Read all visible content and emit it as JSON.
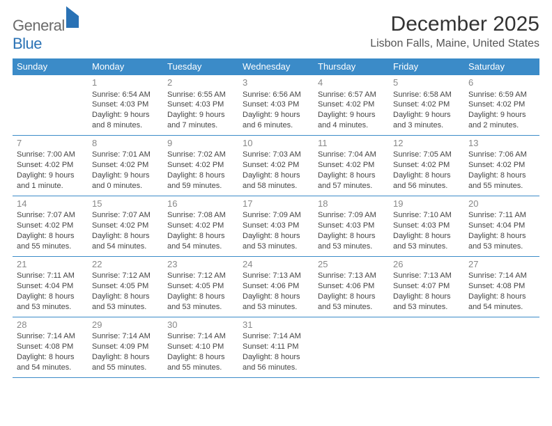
{
  "logo": {
    "general": "General",
    "blue": "Blue"
  },
  "title": "December 2025",
  "location": "Lisbon Falls, Maine, United States",
  "header_bg": "#3b8bc8",
  "weekdays": [
    "Sunday",
    "Monday",
    "Tuesday",
    "Wednesday",
    "Thursday",
    "Friday",
    "Saturday"
  ],
  "weeks": [
    [
      null,
      {
        "n": "1",
        "sr": "Sunrise: 6:54 AM",
        "ss": "Sunset: 4:03 PM",
        "dl1": "Daylight: 9 hours",
        "dl2": "and 8 minutes."
      },
      {
        "n": "2",
        "sr": "Sunrise: 6:55 AM",
        "ss": "Sunset: 4:03 PM",
        "dl1": "Daylight: 9 hours",
        "dl2": "and 7 minutes."
      },
      {
        "n": "3",
        "sr": "Sunrise: 6:56 AM",
        "ss": "Sunset: 4:03 PM",
        "dl1": "Daylight: 9 hours",
        "dl2": "and 6 minutes."
      },
      {
        "n": "4",
        "sr": "Sunrise: 6:57 AM",
        "ss": "Sunset: 4:02 PM",
        "dl1": "Daylight: 9 hours",
        "dl2": "and 4 minutes."
      },
      {
        "n": "5",
        "sr": "Sunrise: 6:58 AM",
        "ss": "Sunset: 4:02 PM",
        "dl1": "Daylight: 9 hours",
        "dl2": "and 3 minutes."
      },
      {
        "n": "6",
        "sr": "Sunrise: 6:59 AM",
        "ss": "Sunset: 4:02 PM",
        "dl1": "Daylight: 9 hours",
        "dl2": "and 2 minutes."
      }
    ],
    [
      {
        "n": "7",
        "sr": "Sunrise: 7:00 AM",
        "ss": "Sunset: 4:02 PM",
        "dl1": "Daylight: 9 hours",
        "dl2": "and 1 minute."
      },
      {
        "n": "8",
        "sr": "Sunrise: 7:01 AM",
        "ss": "Sunset: 4:02 PM",
        "dl1": "Daylight: 9 hours",
        "dl2": "and 0 minutes."
      },
      {
        "n": "9",
        "sr": "Sunrise: 7:02 AM",
        "ss": "Sunset: 4:02 PM",
        "dl1": "Daylight: 8 hours",
        "dl2": "and 59 minutes."
      },
      {
        "n": "10",
        "sr": "Sunrise: 7:03 AM",
        "ss": "Sunset: 4:02 PM",
        "dl1": "Daylight: 8 hours",
        "dl2": "and 58 minutes."
      },
      {
        "n": "11",
        "sr": "Sunrise: 7:04 AM",
        "ss": "Sunset: 4:02 PM",
        "dl1": "Daylight: 8 hours",
        "dl2": "and 57 minutes."
      },
      {
        "n": "12",
        "sr": "Sunrise: 7:05 AM",
        "ss": "Sunset: 4:02 PM",
        "dl1": "Daylight: 8 hours",
        "dl2": "and 56 minutes."
      },
      {
        "n": "13",
        "sr": "Sunrise: 7:06 AM",
        "ss": "Sunset: 4:02 PM",
        "dl1": "Daylight: 8 hours",
        "dl2": "and 55 minutes."
      }
    ],
    [
      {
        "n": "14",
        "sr": "Sunrise: 7:07 AM",
        "ss": "Sunset: 4:02 PM",
        "dl1": "Daylight: 8 hours",
        "dl2": "and 55 minutes."
      },
      {
        "n": "15",
        "sr": "Sunrise: 7:07 AM",
        "ss": "Sunset: 4:02 PM",
        "dl1": "Daylight: 8 hours",
        "dl2": "and 54 minutes."
      },
      {
        "n": "16",
        "sr": "Sunrise: 7:08 AM",
        "ss": "Sunset: 4:02 PM",
        "dl1": "Daylight: 8 hours",
        "dl2": "and 54 minutes."
      },
      {
        "n": "17",
        "sr": "Sunrise: 7:09 AM",
        "ss": "Sunset: 4:03 PM",
        "dl1": "Daylight: 8 hours",
        "dl2": "and 53 minutes."
      },
      {
        "n": "18",
        "sr": "Sunrise: 7:09 AM",
        "ss": "Sunset: 4:03 PM",
        "dl1": "Daylight: 8 hours",
        "dl2": "and 53 minutes."
      },
      {
        "n": "19",
        "sr": "Sunrise: 7:10 AM",
        "ss": "Sunset: 4:03 PM",
        "dl1": "Daylight: 8 hours",
        "dl2": "and 53 minutes."
      },
      {
        "n": "20",
        "sr": "Sunrise: 7:11 AM",
        "ss": "Sunset: 4:04 PM",
        "dl1": "Daylight: 8 hours",
        "dl2": "and 53 minutes."
      }
    ],
    [
      {
        "n": "21",
        "sr": "Sunrise: 7:11 AM",
        "ss": "Sunset: 4:04 PM",
        "dl1": "Daylight: 8 hours",
        "dl2": "and 53 minutes."
      },
      {
        "n": "22",
        "sr": "Sunrise: 7:12 AM",
        "ss": "Sunset: 4:05 PM",
        "dl1": "Daylight: 8 hours",
        "dl2": "and 53 minutes."
      },
      {
        "n": "23",
        "sr": "Sunrise: 7:12 AM",
        "ss": "Sunset: 4:05 PM",
        "dl1": "Daylight: 8 hours",
        "dl2": "and 53 minutes."
      },
      {
        "n": "24",
        "sr": "Sunrise: 7:13 AM",
        "ss": "Sunset: 4:06 PM",
        "dl1": "Daylight: 8 hours",
        "dl2": "and 53 minutes."
      },
      {
        "n": "25",
        "sr": "Sunrise: 7:13 AM",
        "ss": "Sunset: 4:06 PM",
        "dl1": "Daylight: 8 hours",
        "dl2": "and 53 minutes."
      },
      {
        "n": "26",
        "sr": "Sunrise: 7:13 AM",
        "ss": "Sunset: 4:07 PM",
        "dl1": "Daylight: 8 hours",
        "dl2": "and 53 minutes."
      },
      {
        "n": "27",
        "sr": "Sunrise: 7:14 AM",
        "ss": "Sunset: 4:08 PM",
        "dl1": "Daylight: 8 hours",
        "dl2": "and 54 minutes."
      }
    ],
    [
      {
        "n": "28",
        "sr": "Sunrise: 7:14 AM",
        "ss": "Sunset: 4:08 PM",
        "dl1": "Daylight: 8 hours",
        "dl2": "and 54 minutes."
      },
      {
        "n": "29",
        "sr": "Sunrise: 7:14 AM",
        "ss": "Sunset: 4:09 PM",
        "dl1": "Daylight: 8 hours",
        "dl2": "and 55 minutes."
      },
      {
        "n": "30",
        "sr": "Sunrise: 7:14 AM",
        "ss": "Sunset: 4:10 PM",
        "dl1": "Daylight: 8 hours",
        "dl2": "and 55 minutes."
      },
      {
        "n": "31",
        "sr": "Sunrise: 7:14 AM",
        "ss": "Sunset: 4:11 PM",
        "dl1": "Daylight: 8 hours",
        "dl2": "and 56 minutes."
      },
      null,
      null,
      null
    ]
  ]
}
